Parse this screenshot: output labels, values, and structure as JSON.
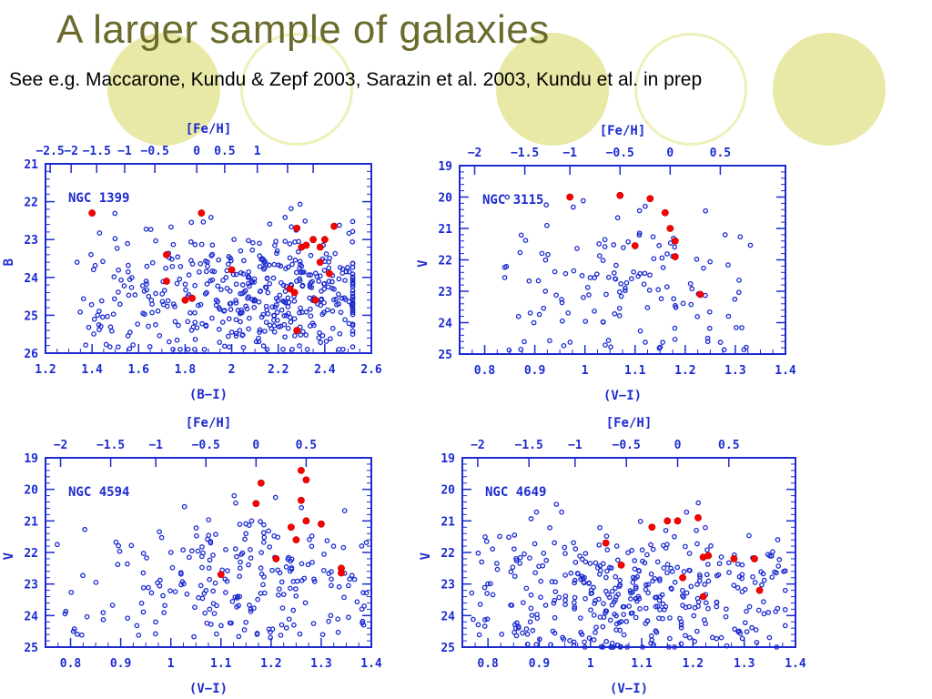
{
  "slide": {
    "title": "A larger sample of galaxies",
    "subtitle": "See e.g. Maccarone, Kundu & Zepf 2003, Sarazin et al. 2003, Kundu et al. in prep"
  },
  "colors": {
    "title": "#6b6b2e",
    "decor_fill": "#e8e9a6",
    "decor_ring": "#eef0b8",
    "axis_blue": "#1c2bd0",
    "lmxb_red": "#ff0000"
  },
  "chart_data": [
    {
      "type": "scatter",
      "name": "NGC 1399",
      "xlabel": "(B−I)",
      "ylabel": "B",
      "toplabel": "[Fe/H]",
      "xlim": [
        1.2,
        2.6
      ],
      "ylim": [
        26,
        21
      ],
      "xticks": [
        1.2,
        1.4,
        1.6,
        1.8,
        2,
        2.2,
        2.4,
        2.6
      ],
      "xtick_labels": [
        "1.2",
        "1.4",
        "1.6",
        "1.8",
        "2",
        "2.2",
        "2.4",
        "2.6"
      ],
      "yticks": [
        21,
        22,
        23,
        24,
        25,
        26
      ],
      "ytick_labels": [
        "21",
        "22",
        "23",
        "24",
        "25",
        "26"
      ],
      "top_ticks_x": [
        1.22,
        1.31,
        1.42,
        1.54,
        1.67,
        1.85,
        1.97,
        2.11,
        2.24,
        2.35
      ],
      "top_tick_labels": [
        "−2.5",
        "−2",
        "−1.5",
        "−1",
        "−0.5",
        "0",
        "0.5",
        "1",
        "",
        ""
      ],
      "red_points": [
        [
          1.4,
          22.3
        ],
        [
          1.87,
          22.3
        ],
        [
          1.72,
          23.4
        ],
        [
          1.72,
          24.1
        ],
        [
          1.8,
          24.6
        ],
        [
          1.83,
          24.55
        ],
        [
          2.0,
          23.8
        ],
        [
          2.25,
          24.3
        ],
        [
          2.27,
          24.4
        ],
        [
          2.28,
          22.7
        ],
        [
          2.3,
          23.2
        ],
        [
          2.32,
          23.15
        ],
        [
          2.35,
          23.0
        ],
        [
          2.38,
          23.2
        ],
        [
          2.4,
          23.0
        ],
        [
          2.38,
          23.6
        ],
        [
          2.42,
          23.9
        ],
        [
          2.44,
          22.65
        ],
        [
          2.36,
          24.6
        ],
        [
          2.28,
          25.4
        ]
      ],
      "blue_count": 470,
      "blue_region": {
        "x": [
          1.33,
          2.52
        ],
        "y": [
          22.0,
          25.9
        ],
        "center_x": 2.2,
        "center_y": 24.4
      }
    },
    {
      "type": "scatter",
      "name": "NGC 3115",
      "xlabel": "(V−I)",
      "ylabel": "V",
      "toplabel": "[Fe/H]",
      "xlim": [
        0.75,
        1.4
      ],
      "ylim": [
        25,
        19
      ],
      "xticks": [
        0.8,
        0.9,
        1,
        1.1,
        1.2,
        1.3,
        1.4
      ],
      "xtick_labels": [
        "0.8",
        "0.9",
        "1",
        "1.1",
        "1.2",
        "1.3",
        "1.4"
      ],
      "yticks": [
        19,
        20,
        21,
        22,
        23,
        24,
        25
      ],
      "ytick_labels": [
        "19",
        "20",
        "21",
        "22",
        "23",
        "24",
        "25"
      ],
      "top_ticks_x": [
        0.78,
        0.88,
        0.97,
        1.07,
        1.17,
        1.27
      ],
      "top_tick_labels": [
        "−2",
        "−1.5",
        "−1",
        "−0.5",
        "0",
        "0.5"
      ],
      "red_points": [
        [
          0.97,
          20.0
        ],
        [
          1.07,
          19.95
        ],
        [
          1.13,
          20.05
        ],
        [
          1.16,
          20.5
        ],
        [
          1.17,
          21.0
        ],
        [
          1.18,
          21.4
        ],
        [
          1.1,
          21.55
        ],
        [
          1.18,
          21.9
        ],
        [
          1.23,
          23.1
        ]
      ],
      "blue_count": 140,
      "blue_region": {
        "x": [
          0.84,
          1.33
        ],
        "y": [
          19.9,
          24.9
        ],
        "center_x": 1.08,
        "center_y": 22.4
      }
    },
    {
      "type": "scatter",
      "name": "NGC 4594",
      "xlabel": "(V−I)",
      "ylabel": "V",
      "toplabel": "[Fe/H]",
      "xlim": [
        0.75,
        1.4
      ],
      "ylim": [
        25,
        19
      ],
      "xticks": [
        0.8,
        0.9,
        1,
        1.1,
        1.2,
        1.3,
        1.4
      ],
      "xtick_labels": [
        "0.8",
        "0.9",
        "1",
        "1.1",
        "1.2",
        "1.3",
        "1.4"
      ],
      "yticks": [
        19,
        20,
        21,
        22,
        23,
        24,
        25
      ],
      "ytick_labels": [
        "19",
        "20",
        "21",
        "22",
        "23",
        "24",
        "25"
      ],
      "top_ticks_x": [
        0.78,
        0.88,
        0.97,
        1.07,
        1.17,
        1.27
      ],
      "top_tick_labels": [
        "−2",
        "−1.5",
        "−1",
        "−0.5",
        "0",
        "0.5"
      ],
      "red_points": [
        [
          1.18,
          19.8
        ],
        [
          1.26,
          19.4
        ],
        [
          1.27,
          19.7
        ],
        [
          1.17,
          20.45
        ],
        [
          1.26,
          20.35
        ],
        [
          1.24,
          21.2
        ],
        [
          1.25,
          21.6
        ],
        [
          1.27,
          21.0
        ],
        [
          1.3,
          21.1
        ],
        [
          1.21,
          22.2
        ],
        [
          1.1,
          22.7
        ],
        [
          1.34,
          22.5
        ],
        [
          1.34,
          22.65
        ]
      ],
      "blue_count": 230,
      "blue_region": {
        "x": [
          0.77,
          1.39
        ],
        "y": [
          20.2,
          24.7
        ],
        "center_x": 1.15,
        "center_y": 22.4
      }
    },
    {
      "type": "scatter",
      "name": "NGC 4649",
      "xlabel": "(V−I)",
      "ylabel": "V",
      "toplabel": "[Fe/H]",
      "xlim": [
        0.75,
        1.4
      ],
      "ylim": [
        25,
        19
      ],
      "xticks": [
        0.8,
        0.9,
        1,
        1.1,
        1.2,
        1.3,
        1.4
      ],
      "xtick_labels": [
        "0.8",
        "0.9",
        "1",
        "1.1",
        "1.2",
        "1.3",
        "1.4"
      ],
      "yticks": [
        19,
        20,
        21,
        22,
        23,
        24,
        25
      ],
      "ytick_labels": [
        "19",
        "20",
        "21",
        "22",
        "23",
        "24",
        "25"
      ],
      "top_ticks_x": [
        0.78,
        0.88,
        0.97,
        1.07,
        1.17,
        1.27
      ],
      "top_tick_labels": [
        "−2",
        "−1.5",
        "−1",
        "−0.5",
        "0",
        "0.5"
      ],
      "red_points": [
        [
          1.03,
          21.7
        ],
        [
          1.06,
          22.4
        ],
        [
          1.12,
          21.2
        ],
        [
          1.15,
          21.0
        ],
        [
          1.17,
          21.0
        ],
        [
          1.21,
          20.9
        ],
        [
          1.22,
          22.15
        ],
        [
          1.23,
          22.1
        ],
        [
          1.18,
          22.8
        ],
        [
          1.22,
          23.4
        ],
        [
          1.28,
          22.2
        ],
        [
          1.32,
          22.2
        ],
        [
          1.33,
          23.2
        ]
      ],
      "blue_count": 400,
      "blue_region": {
        "x": [
          0.76,
          1.38
        ],
        "y": [
          20.4,
          25.0
        ],
        "center_x": 1.1,
        "center_y": 23.3
      }
    }
  ]
}
